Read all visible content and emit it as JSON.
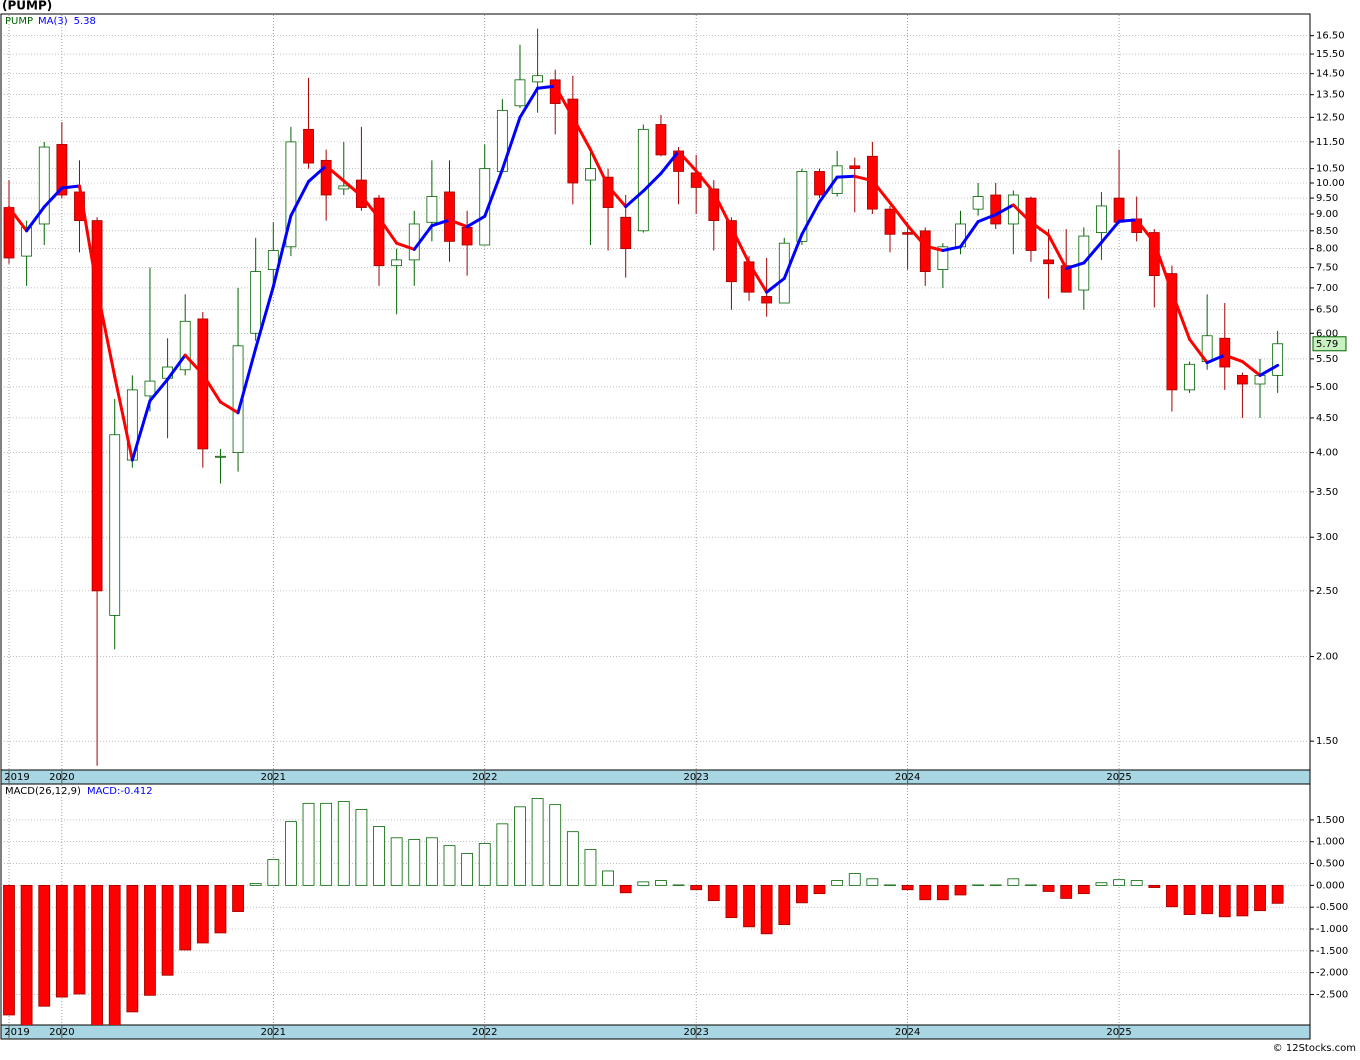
{
  "chart_data": [
    {
      "type": "candlestick",
      "title": "(PUMP)",
      "symbol": "PUMP",
      "log_y": true,
      "grid": true,
      "categories": [
        "2019",
        null,
        null,
        "2020",
        null,
        null,
        null,
        null,
        null,
        null,
        null,
        null,
        null,
        null,
        null,
        "2021",
        null,
        null,
        null,
        null,
        null,
        null,
        null,
        null,
        null,
        null,
        null,
        "2022",
        null,
        null,
        null,
        null,
        null,
        null,
        null,
        null,
        null,
        null,
        null,
        "2023",
        null,
        null,
        null,
        null,
        null,
        null,
        null,
        null,
        null,
        null,
        null,
        "2024",
        null,
        null,
        null,
        null,
        null,
        null,
        null,
        null,
        null,
        null,
        null,
        "2025",
        null,
        null,
        null,
        null,
        null,
        null,
        null,
        null,
        null
      ],
      "open": [
        9.2,
        7.8,
        8.7,
        11.4,
        9.7,
        8.8,
        2.3,
        3.9,
        4.85,
        5.15,
        5.3,
        6.3,
        3.95,
        4.0,
        6.0,
        7.45,
        8.05,
        12.0,
        10.8,
        9.8,
        10.1,
        9.5,
        7.55,
        7.7,
        8.75,
        9.7,
        8.6,
        8.1,
        10.4,
        13.0,
        14.1,
        14.2,
        13.3,
        10.1,
        10.2,
        8.9,
        8.5,
        12.2,
        11.15,
        10.35,
        9.8,
        8.8,
        7.65,
        6.8,
        6.65,
        8.2,
        10.4,
        9.65,
        10.6,
        10.95,
        9.15,
        8.45,
        8.5,
        7.45,
        8.05,
        9.15,
        9.6,
        8.7,
        9.5,
        7.7,
        7.55,
        6.95,
        8.45,
        9.5,
        8.85,
        8.45,
        7.35,
        4.95,
        5.45,
        5.9,
        5.2,
        5.05,
        5.2
      ],
      "high": [
        10.1,
        8.8,
        11.5,
        12.3,
        10.8,
        8.9,
        4.8,
        5.2,
        7.5,
        5.9,
        6.85,
        6.45,
        4.05,
        7.0,
        8.3,
        8.75,
        12.1,
        14.3,
        11.2,
        11.5,
        12.1,
        9.6,
        8.0,
        9.1,
        10.8,
        10.8,
        9.1,
        11.4,
        13.3,
        16.0,
        16.9,
        14.7,
        14.4,
        11.3,
        10.5,
        9.6,
        12.2,
        12.6,
        11.3,
        11.0,
        10.1,
        8.9,
        7.8,
        7.75,
        8.3,
        10.5,
        10.5,
        11.15,
        10.9,
        11.5,
        9.25,
        8.75,
        8.6,
        8.15,
        9.1,
        10.0,
        10.0,
        9.75,
        9.55,
        8.55,
        8.55,
        8.6,
        9.7,
        11.2,
        9.55,
        8.55,
        7.55,
        5.45,
        6.85,
        6.65,
        5.25,
        5.5,
        6.05
      ],
      "low": [
        7.6,
        7.05,
        8.1,
        9.5,
        7.9,
        1.38,
        2.05,
        3.8,
        4.6,
        4.2,
        5.2,
        3.8,
        3.6,
        3.75,
        5.85,
        7.05,
        7.8,
        10.5,
        8.8,
        9.6,
        9.1,
        7.05,
        6.4,
        7.05,
        8.2,
        7.65,
        7.3,
        8.1,
        10.4,
        12.9,
        12.7,
        11.8,
        9.3,
        8.1,
        7.95,
        7.25,
        8.45,
        10.95,
        9.3,
        9.0,
        7.95,
        6.5,
        6.7,
        6.35,
        6.65,
        8.1,
        9.5,
        9.55,
        9.05,
        9.0,
        7.9,
        7.45,
        7.05,
        7.0,
        7.85,
        8.95,
        8.55,
        7.85,
        7.65,
        6.75,
        6.9,
        6.5,
        7.7,
        8.7,
        8.2,
        6.55,
        4.6,
        4.9,
        5.3,
        4.95,
        4.5,
        4.5,
        4.9
      ],
      "close": [
        7.75,
        8.6,
        11.3,
        9.6,
        8.8,
        2.5,
        4.25,
        4.95,
        5.1,
        5.35,
        6.25,
        4.05,
        3.95,
        5.75,
        7.4,
        7.95,
        11.5,
        10.7,
        9.6,
        9.9,
        9.2,
        7.55,
        7.7,
        8.7,
        9.55,
        8.2,
        8.1,
        10.5,
        12.8,
        14.2,
        14.4,
        13.1,
        10.0,
        10.5,
        9.2,
        8.0,
        12.0,
        11.0,
        10.4,
        9.85,
        8.8,
        7.15,
        6.9,
        6.65,
        8.15,
        10.4,
        9.6,
        10.6,
        10.5,
        9.15,
        8.4,
        8.4,
        7.4,
        8.05,
        8.7,
        9.55,
        8.7,
        9.6,
        7.95,
        7.6,
        6.9,
        8.35,
        9.25,
        8.75,
        8.45,
        7.3,
        4.95,
        5.4,
        5.95,
        5.35,
        5.05,
        5.2,
        5.79
      ],
      "up_color": "#ffffff",
      "up_edge": "#006400",
      "down_color": "#ff0000",
      "down_edge": "#a00000",
      "series": [
        {
          "name": "MA(3)",
          "color": "#0000ff",
          "up_color": "#0000ff",
          "down_color": "#ff0000",
          "values": [
            9.2,
            8.5,
            9.22,
            9.83,
            9.9,
            6.97,
            5.18,
            3.9,
            4.77,
            5.13,
            5.57,
            5.22,
            4.75,
            4.58,
            5.7,
            7.03,
            8.95,
            10.05,
            10.6,
            10.07,
            9.57,
            8.88,
            8.15,
            7.98,
            8.65,
            8.82,
            8.62,
            8.93,
            10.47,
            12.5,
            13.8,
            13.9,
            12.5,
            11.2,
            9.9,
            9.23,
            9.73,
            10.33,
            11.13,
            10.42,
            9.68,
            8.6,
            7.62,
            6.9,
            7.23,
            8.4,
            9.38,
            10.2,
            10.23,
            10.08,
            9.35,
            8.65,
            8.07,
            7.95,
            8.05,
            8.77,
            8.98,
            9.28,
            8.75,
            8.38,
            7.48,
            7.62,
            8.17,
            8.78,
            8.82,
            8.17,
            6.9,
            5.88,
            5.43,
            5.57,
            5.45,
            5.2,
            5.38
          ]
        }
      ],
      "ylim": [
        1.36,
        17.7
      ],
      "yticks": [
        {
          "value": 16.5,
          "label": "16.50"
        },
        {
          "value": 15.5,
          "label": "15.50"
        },
        {
          "value": 14.5,
          "label": "14.50"
        },
        {
          "value": 13.5,
          "label": "13.50"
        },
        {
          "value": 12.5,
          "label": "12.50"
        },
        {
          "value": 11.5,
          "label": "11.50"
        },
        {
          "value": 10.5,
          "label": "10.50"
        },
        {
          "value": 10,
          "label": "10.00"
        },
        {
          "value": 9.5,
          "label": "9.50"
        },
        {
          "value": 9,
          "label": "9.00"
        },
        {
          "value": 8.5,
          "label": "8.50"
        },
        {
          "value": 8,
          "label": "8.00"
        },
        {
          "value": 7.5,
          "label": "7.50"
        },
        {
          "value": 7,
          "label": "7.00"
        },
        {
          "value": 6.5,
          "label": "6.50"
        },
        {
          "value": 6,
          "label": "6.00"
        },
        {
          "value": 5.5,
          "label": "5.50"
        },
        {
          "value": 5,
          "label": "5.00"
        },
        {
          "value": 4.5,
          "label": "4.50"
        },
        {
          "value": 4,
          "label": "4.00"
        },
        {
          "value": 3.5,
          "label": "3.50"
        },
        {
          "value": 3,
          "label": "3.00"
        },
        {
          "value": 2.5,
          "label": "2.50"
        },
        {
          "value": 2,
          "label": "2.00"
        },
        {
          "value": 1.5,
          "label": "1.50"
        }
      ]
    },
    {
      "type": "bar",
      "title": "MACD(26,12,9)",
      "legend_label": "MACD:",
      "grid": true,
      "categories": [
        "2019",
        null,
        null,
        "2020",
        null,
        null,
        null,
        null,
        null,
        null,
        null,
        null,
        null,
        null,
        null,
        "2021",
        null,
        null,
        null,
        null,
        null,
        null,
        null,
        null,
        null,
        null,
        null,
        "2022",
        null,
        null,
        null,
        null,
        null,
        null,
        null,
        null,
        null,
        null,
        null,
        "2023",
        null,
        null,
        null,
        null,
        null,
        null,
        null,
        null,
        null,
        null,
        null,
        "2024",
        null,
        null,
        null,
        null,
        null,
        null,
        null,
        null,
        null,
        null,
        null,
        "2025",
        null,
        null,
        null,
        null,
        null,
        null,
        null,
        null,
        null
      ],
      "values": [
        -2.97,
        -3.25,
        -2.77,
        -2.56,
        -2.49,
        -3.25,
        -3.25,
        -2.9,
        -2.52,
        -2.06,
        -1.48,
        -1.32,
        -1.09,
        -0.6,
        0.04,
        0.59,
        1.46,
        1.88,
        1.88,
        1.92,
        1.74,
        1.35,
        1.09,
        1.05,
        1.09,
        0.91,
        0.73,
        0.96,
        1.41,
        1.8,
        1.99,
        1.85,
        1.23,
        0.82,
        0.33,
        -0.17,
        0.08,
        0.11,
        0.01,
        -0.1,
        -0.35,
        -0.74,
        -0.95,
        -1.11,
        -0.9,
        -0.4,
        -0.19,
        0.11,
        0.27,
        0.15,
        0.01,
        -0.1,
        -0.33,
        -0.33,
        -0.22,
        0.01,
        0.01,
        0.15,
        0.01,
        -0.14,
        -0.3,
        -0.19,
        0.06,
        0.13,
        0.11,
        -0.05,
        -0.49,
        -0.67,
        -0.65,
        -0.72,
        -0.7,
        -0.58,
        -0.412
      ],
      "up_color": "#ffffff",
      "up_edge": "#006400",
      "down_color": "#ff0000",
      "down_edge": "#a00000",
      "legend_color": "#0000ff",
      "ylim": [
        -3.2,
        2.3
      ],
      "yticks": [
        {
          "value": 1.5,
          "label": "1.500"
        },
        {
          "value": 1,
          "label": "1.000"
        },
        {
          "value": 0.5,
          "label": "0.500"
        },
        {
          "value": 0,
          "label": "0.000"
        },
        {
          "value": -0.5,
          "label": "-0.500"
        },
        {
          "value": -1,
          "label": "-1.000"
        },
        {
          "value": -1.5,
          "label": "-1.500"
        },
        {
          "value": -2,
          "label": "-2.000"
        },
        {
          "value": -2.5,
          "label": "-2.500"
        }
      ]
    }
  ],
  "footer": "© 12Stocks.com"
}
